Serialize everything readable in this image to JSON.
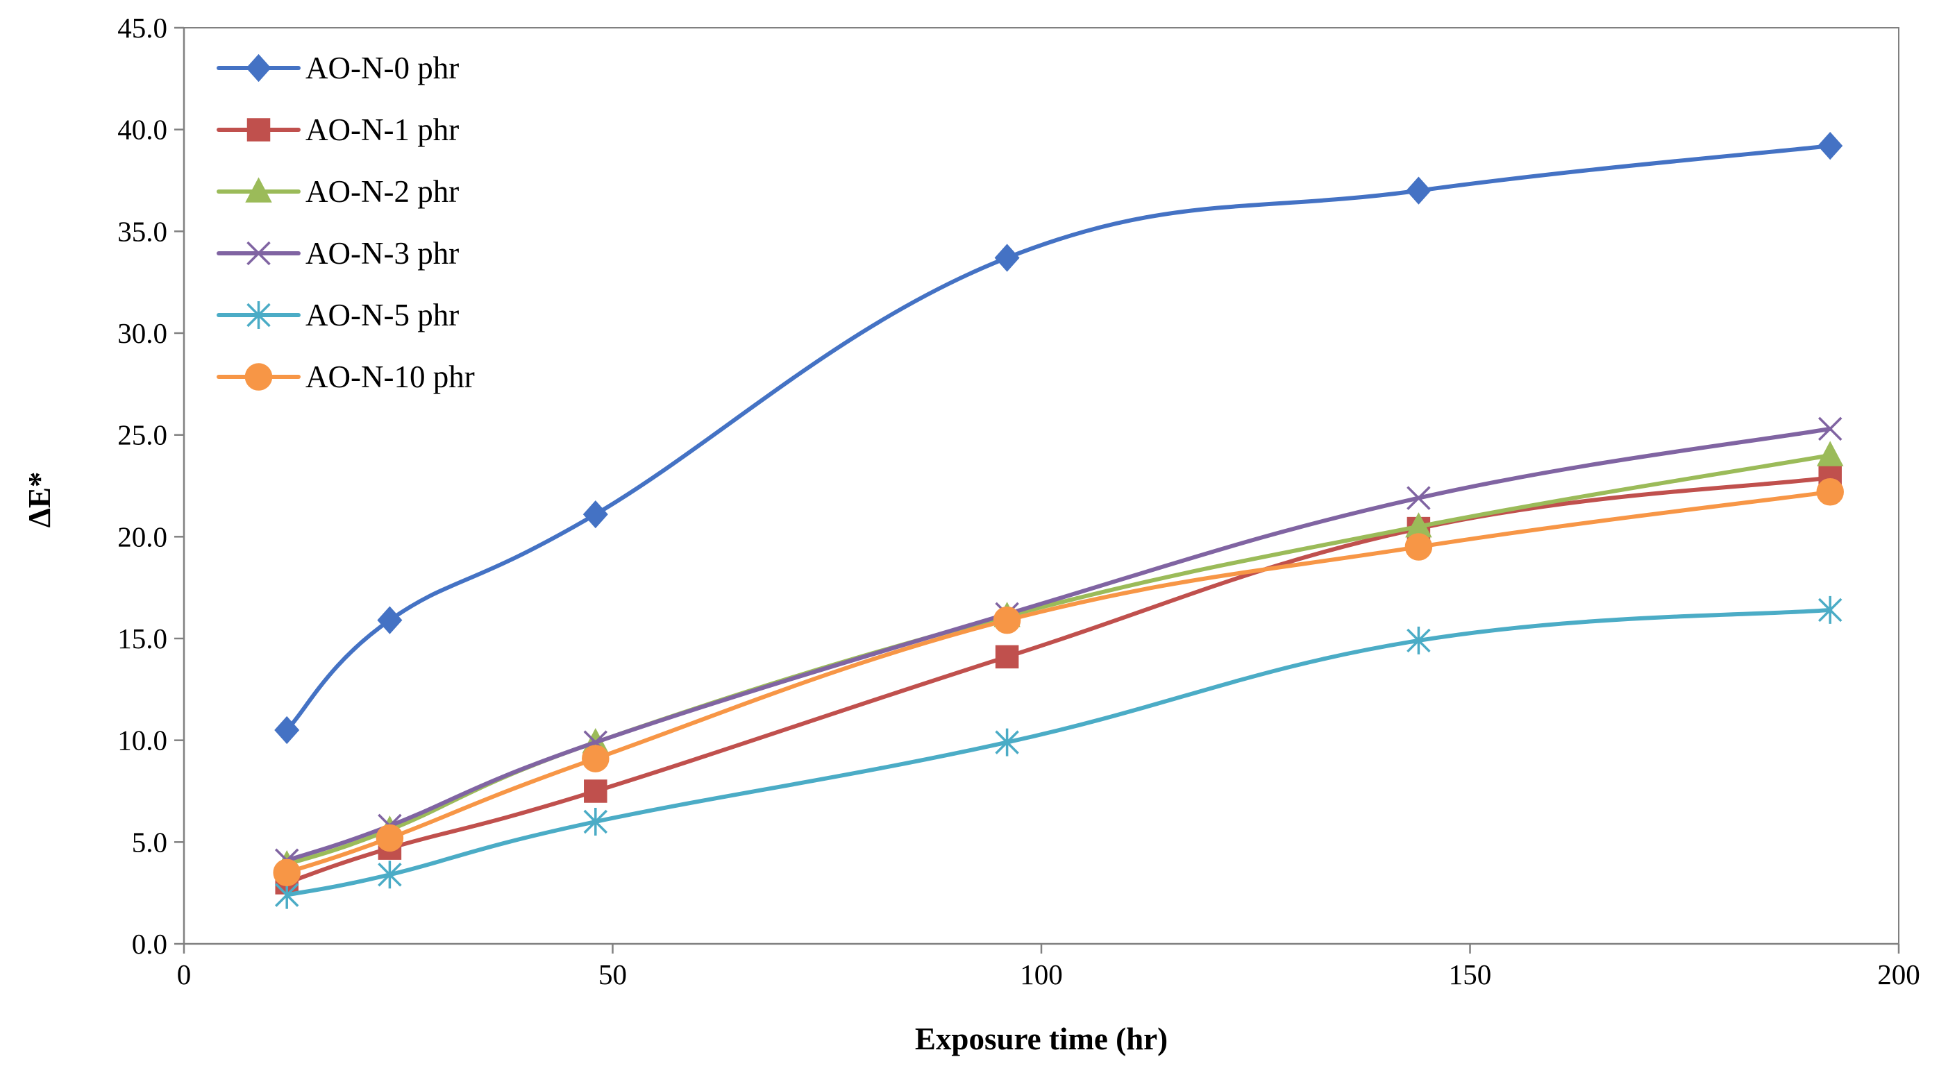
{
  "chart_data": {
    "type": "line",
    "title": "",
    "xlabel": "Exposure time (hr)",
    "ylabel": "ΔE*",
    "xlim": [
      0,
      200
    ],
    "ylim": [
      0,
      45
    ],
    "x_ticks": [
      0,
      50,
      100,
      150,
      200
    ],
    "x_tick_labels": [
      "0",
      "50",
      "100",
      "150",
      "200"
    ],
    "y_ticks": [
      0,
      5,
      10,
      15,
      20,
      25,
      30,
      35,
      40,
      45
    ],
    "y_tick_labels": [
      "0.0",
      "5.0",
      "10.0",
      "15.0",
      "20.0",
      "25.0",
      "30.0",
      "35.0",
      "40.0",
      "45.0"
    ],
    "grid": false,
    "legend_position": "top-left",
    "x": [
      12,
      24,
      48,
      96,
      144,
      192
    ],
    "series": [
      {
        "name": "AO-N-0 phr",
        "color": "#4472C4",
        "marker": "diamond",
        "values": [
          10.5,
          15.9,
          21.1,
          33.7,
          37.0,
          39.2
        ]
      },
      {
        "name": "AO-N-1 phr",
        "color": "#C0504D",
        "marker": "square",
        "values": [
          3.0,
          4.7,
          7.5,
          14.1,
          20.4,
          22.9
        ]
      },
      {
        "name": "AO-N-2 phr",
        "color": "#9BBB59",
        "marker": "triangle",
        "values": [
          3.9,
          5.6,
          9.9,
          16.1,
          20.5,
          24.0
        ]
      },
      {
        "name": "AO-N-3 phr",
        "color": "#8064A2",
        "marker": "x",
        "values": [
          4.1,
          5.8,
          9.9,
          16.2,
          21.9,
          25.3
        ]
      },
      {
        "name": "AO-N-5 phr",
        "color": "#4BACC6",
        "marker": "asterisk",
        "values": [
          2.4,
          3.4,
          6.0,
          9.9,
          14.9,
          16.4
        ]
      },
      {
        "name": "AO-N-10 phr",
        "color": "#F79646",
        "marker": "circle",
        "values": [
          3.5,
          5.2,
          9.1,
          15.9,
          19.5,
          22.2
        ]
      }
    ]
  }
}
